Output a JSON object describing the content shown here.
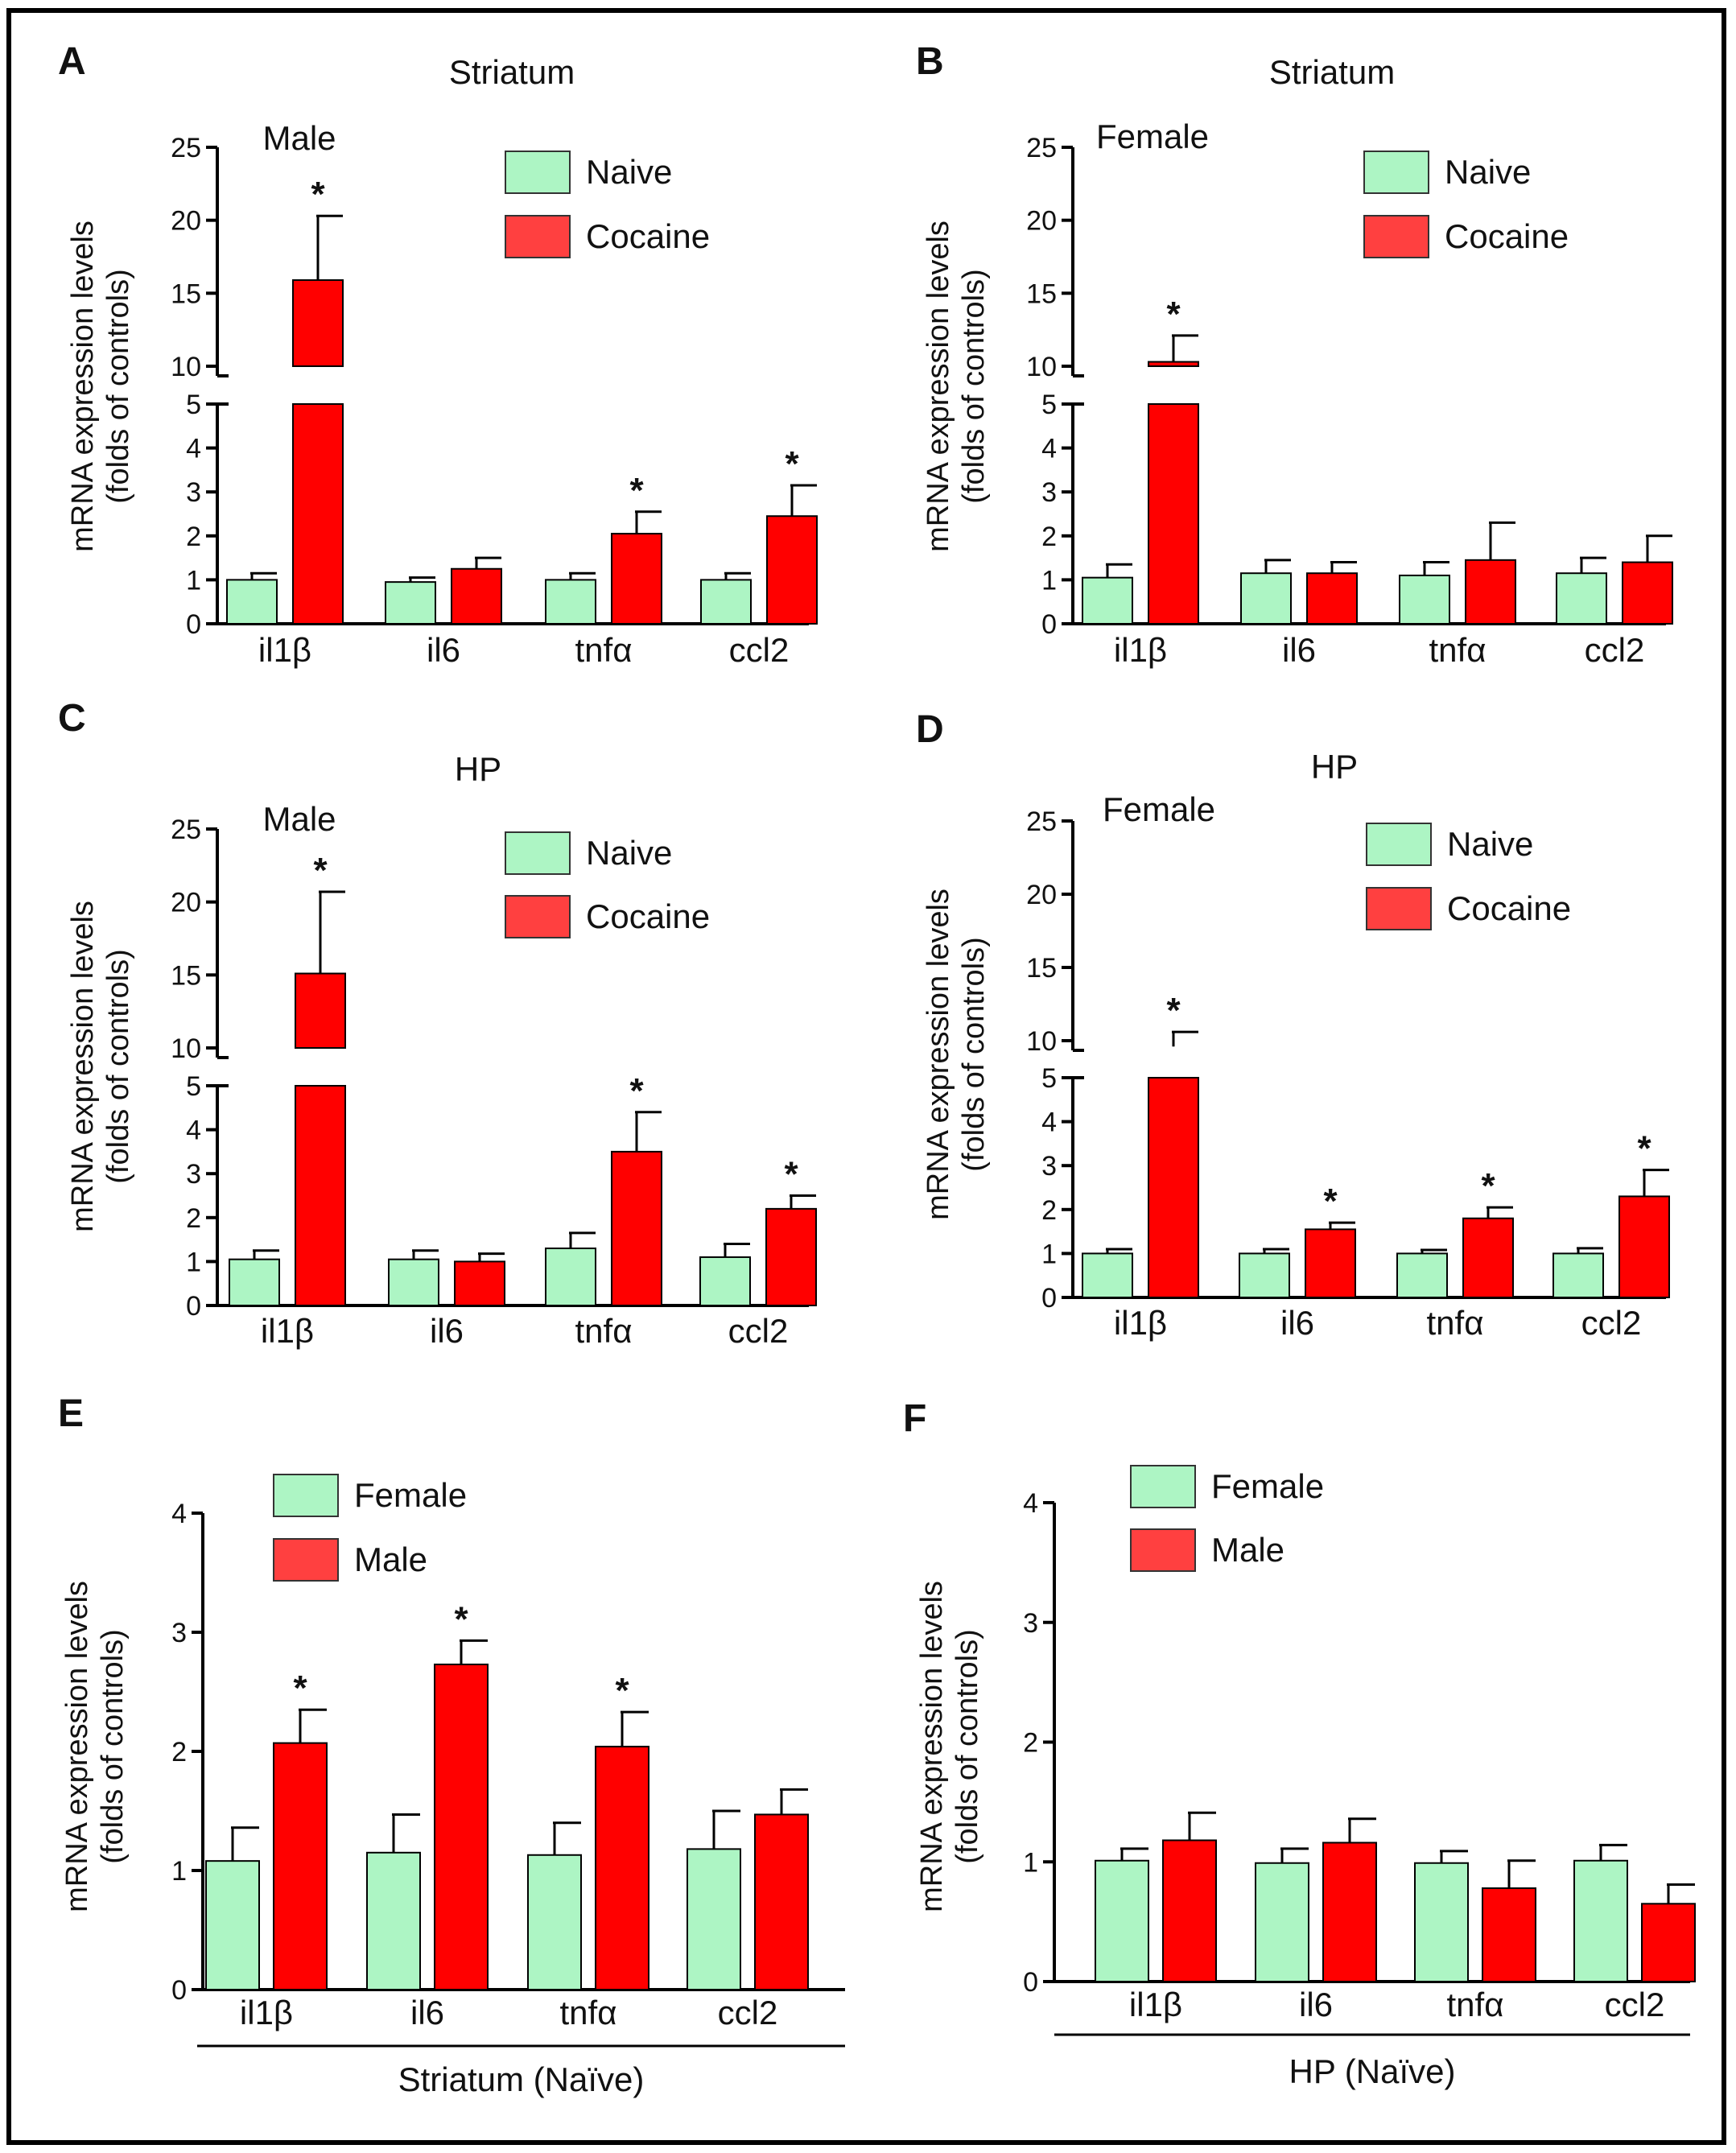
{
  "colors": {
    "naive": "#adf5c4",
    "cocaine": "#ff0000",
    "legend_cocaine": "#ff4040",
    "axis": "#000000"
  },
  "y_axis_label": [
    "mRNA expression levels",
    "(folds of controls)"
  ],
  "chart_data": [
    {
      "panel": "A",
      "type": "bar",
      "title": "Striatum",
      "subtitle": "Male",
      "categories": [
        "il1β",
        "il6",
        "tnfα",
        "ccl2"
      ],
      "series": [
        {
          "name": "Naive",
          "values": [
            1.0,
            0.95,
            1.0,
            1.0
          ],
          "errors": [
            0.15,
            0.1,
            0.15,
            0.15
          ]
        },
        {
          "name": "Cocaine",
          "values": [
            15.9,
            1.25,
            2.05,
            2.45
          ],
          "errors": [
            4.4,
            0.25,
            0.5,
            0.7
          ]
        }
      ],
      "significant": {
        "Cocaine": [
          true,
          false,
          true,
          true
        ]
      },
      "broken_axis": true,
      "low_ticks": [
        0,
        1,
        2,
        3,
        4,
        5
      ],
      "high_ticks": [
        10,
        15,
        20,
        25
      ],
      "legend": [
        "Naive",
        "Cocaine"
      ]
    },
    {
      "panel": "B",
      "type": "bar",
      "title": "Striatum",
      "subtitle": "Female",
      "categories": [
        "il1β",
        "il6",
        "tnfα",
        "ccl2"
      ],
      "series": [
        {
          "name": "Naive",
          "values": [
            1.05,
            1.15,
            1.1,
            1.15
          ],
          "errors": [
            0.3,
            0.3,
            0.3,
            0.35
          ]
        },
        {
          "name": "Cocaine",
          "values": [
            10.3,
            1.15,
            1.45,
            1.4
          ],
          "errors": [
            1.8,
            0.25,
            0.85,
            0.6
          ]
        }
      ],
      "significant": {
        "Cocaine": [
          true,
          false,
          false,
          false
        ]
      },
      "broken_axis": true,
      "low_ticks": [
        0,
        1,
        2,
        3,
        4,
        5
      ],
      "high_ticks": [
        10,
        15,
        20,
        25
      ],
      "legend": [
        "Naive",
        "Cocaine"
      ]
    },
    {
      "panel": "C",
      "type": "bar",
      "title": "HP",
      "subtitle": "Male",
      "categories": [
        "il1β",
        "il6",
        "tnfα",
        "ccl2"
      ],
      "series": [
        {
          "name": "Naive",
          "values": [
            1.05,
            1.05,
            1.3,
            1.1
          ],
          "errors": [
            0.2,
            0.2,
            0.35,
            0.3
          ]
        },
        {
          "name": "Cocaine",
          "values": [
            15.1,
            1.0,
            3.5,
            2.2
          ],
          "errors": [
            5.6,
            0.18,
            0.9,
            0.3
          ]
        }
      ],
      "significant": {
        "Cocaine": [
          true,
          false,
          true,
          true
        ]
      },
      "broken_axis": true,
      "low_ticks": [
        0,
        1,
        2,
        3,
        4,
        5
      ],
      "high_ticks": [
        10,
        15,
        20,
        25
      ],
      "legend": [
        "Naive",
        "Cocaine"
      ]
    },
    {
      "panel": "D",
      "type": "bar",
      "title": "HP",
      "subtitle": "Female",
      "categories": [
        "il1β",
        "il6",
        "tnfα",
        "ccl2"
      ],
      "series": [
        {
          "name": "Naive",
          "values": [
            1.0,
            1.0,
            1.0,
            1.0
          ],
          "errors": [
            0.1,
            0.1,
            0.08,
            0.12
          ]
        },
        {
          "name": "Cocaine",
          "values": [
            9.6,
            1.55,
            1.8,
            2.3
          ],
          "errors": [
            1.0,
            0.15,
            0.25,
            0.6
          ]
        }
      ],
      "significant": {
        "Cocaine": [
          true,
          true,
          true,
          true
        ]
      },
      "broken_axis": true,
      "low_ticks": [
        0,
        1,
        2,
        3,
        4,
        5
      ],
      "high_ticks": [
        10,
        15,
        20,
        25
      ],
      "legend": [
        "Naive",
        "Cocaine"
      ]
    },
    {
      "panel": "E",
      "type": "bar",
      "xlabel": "Striatum (Naïve)",
      "categories": [
        "il1β",
        "il6",
        "tnfα",
        "ccl2"
      ],
      "series": [
        {
          "name": "Female",
          "values": [
            1.08,
            1.15,
            1.13,
            1.18
          ],
          "errors": [
            0.28,
            0.32,
            0.27,
            0.32
          ]
        },
        {
          "name": "Male",
          "values": [
            2.07,
            2.73,
            2.04,
            1.47
          ],
          "errors": [
            0.28,
            0.2,
            0.29,
            0.21
          ]
        }
      ],
      "significant": {
        "Male": [
          true,
          true,
          true,
          false
        ]
      },
      "broken_axis": false,
      "ylim": [
        0,
        4
      ],
      "ticks": [
        0,
        1,
        2,
        3,
        4
      ],
      "legend": [
        "Female",
        "Male"
      ]
    },
    {
      "panel": "F",
      "type": "bar",
      "xlabel": "HP (Naïve)",
      "categories": [
        "il1β",
        "il6",
        "tnfα",
        "ccl2"
      ],
      "series": [
        {
          "name": "Female",
          "values": [
            1.01,
            0.99,
            0.99,
            1.01
          ],
          "errors": [
            0.1,
            0.12,
            0.1,
            0.13
          ]
        },
        {
          "name": "Male",
          "values": [
            1.18,
            1.16,
            0.78,
            0.65
          ],
          "errors": [
            0.23,
            0.2,
            0.23,
            0.16
          ]
        }
      ],
      "significant": {
        "Male": [
          false,
          false,
          false,
          false
        ]
      },
      "broken_axis": false,
      "ylim": [
        0,
        4
      ],
      "ticks": [
        0,
        1,
        2,
        3,
        4
      ],
      "legend": [
        "Female",
        "Male"
      ]
    }
  ]
}
